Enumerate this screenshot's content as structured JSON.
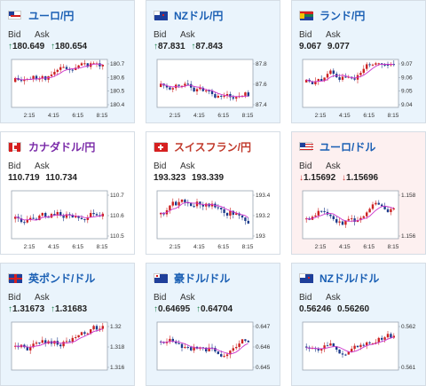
{
  "cards": [
    {
      "title": "ユーロ/円",
      "bid_label": "Bid",
      "ask_label": "Ask",
      "bid": "180.649",
      "ask": "180.654",
      "dir": "↑",
      "dir_class": "up",
      "y_ticks": [
        "180.7",
        "180.6",
        "180.5",
        "180.4"
      ],
      "x_ticks": [
        "2:15",
        "4:15",
        "6:15",
        "8:15"
      ]
    },
    {
      "title": "NZドル/円",
      "bid_label": "Bid",
      "ask_label": "Ask",
      "bid": "87.831",
      "ask": "87.843",
      "dir": "↑",
      "dir_class": "up",
      "y_ticks": [
        "87.8",
        "87.6",
        "87.4"
      ],
      "x_ticks": [
        "2:15",
        "4:15",
        "6:15",
        "8:15"
      ]
    },
    {
      "title": "ランド/円",
      "bid_label": "Bid",
      "ask_label": "Ask",
      "bid": "9.067",
      "ask": "9.077",
      "dir": "",
      "dir_class": "",
      "y_ticks": [
        "9.07",
        "9.06",
        "9.05",
        "9.04"
      ],
      "x_ticks": [
        "2:15",
        "4:15",
        "6:15",
        "8:15"
      ]
    },
    {
      "title": "カナダドル/円",
      "bid_label": "Bid",
      "ask_label": "Ask",
      "bid": "110.719",
      "ask": "110.734",
      "dir": "",
      "dir_class": "",
      "y_ticks": [
        "110.7",
        "110.6",
        "110.5"
      ],
      "x_ticks": [
        "2:15",
        "4:15",
        "6:15",
        "8:15"
      ]
    },
    {
      "title": "スイスフラン/円",
      "bid_label": "Bid",
      "ask_label": "Ask",
      "bid": "193.323",
      "ask": "193.339",
      "dir": "",
      "dir_class": "",
      "y_ticks": [
        "193.4",
        "193.2",
        "193"
      ],
      "x_ticks": [
        "2:15",
        "4:15",
        "6:15",
        "8:15"
      ]
    },
    {
      "title": "ユーロ/ドル",
      "bid_label": "Bid",
      "ask_label": "Ask",
      "bid": "1.15692",
      "ask": "1.15696",
      "dir": "↓",
      "dir_class": "down",
      "y_ticks": [
        "1.158",
        "1.156"
      ],
      "x_ticks": [
        "2:15",
        "4:15",
        "6:15",
        "8:15"
      ]
    },
    {
      "title": "英ポンド/ドル",
      "bid_label": "Bid",
      "ask_label": "Ask",
      "bid": "1.31673",
      "ask": "1.31683",
      "dir": "↑",
      "dir_class": "up",
      "y_ticks": [
        "1.32",
        "1.318",
        "1.316"
      ],
      "x_ticks": []
    },
    {
      "title": "豪ドル/ドル",
      "bid_label": "Bid",
      "ask_label": "Ask",
      "bid": "0.64695",
      "ask": "0.64704",
      "dir": "↑",
      "dir_class": "up",
      "y_ticks": [
        "0.647",
        "0.646",
        "0.645"
      ],
      "x_ticks": []
    },
    {
      "title": "NZドル/ドル",
      "bid_label": "Bid",
      "ask_label": "Ask",
      "bid": "0.56246",
      "ask": "0.56260",
      "dir": "",
      "dir_class": "",
      "y_ticks": [
        "0.562",
        "0.561"
      ],
      "x_ticks": []
    }
  ],
  "colors": {
    "candle_up": "#cc2222",
    "candle_down": "#1e3c8c",
    "ma_line": "#cc33cc",
    "ma_line2": "#33a0c8"
  }
}
